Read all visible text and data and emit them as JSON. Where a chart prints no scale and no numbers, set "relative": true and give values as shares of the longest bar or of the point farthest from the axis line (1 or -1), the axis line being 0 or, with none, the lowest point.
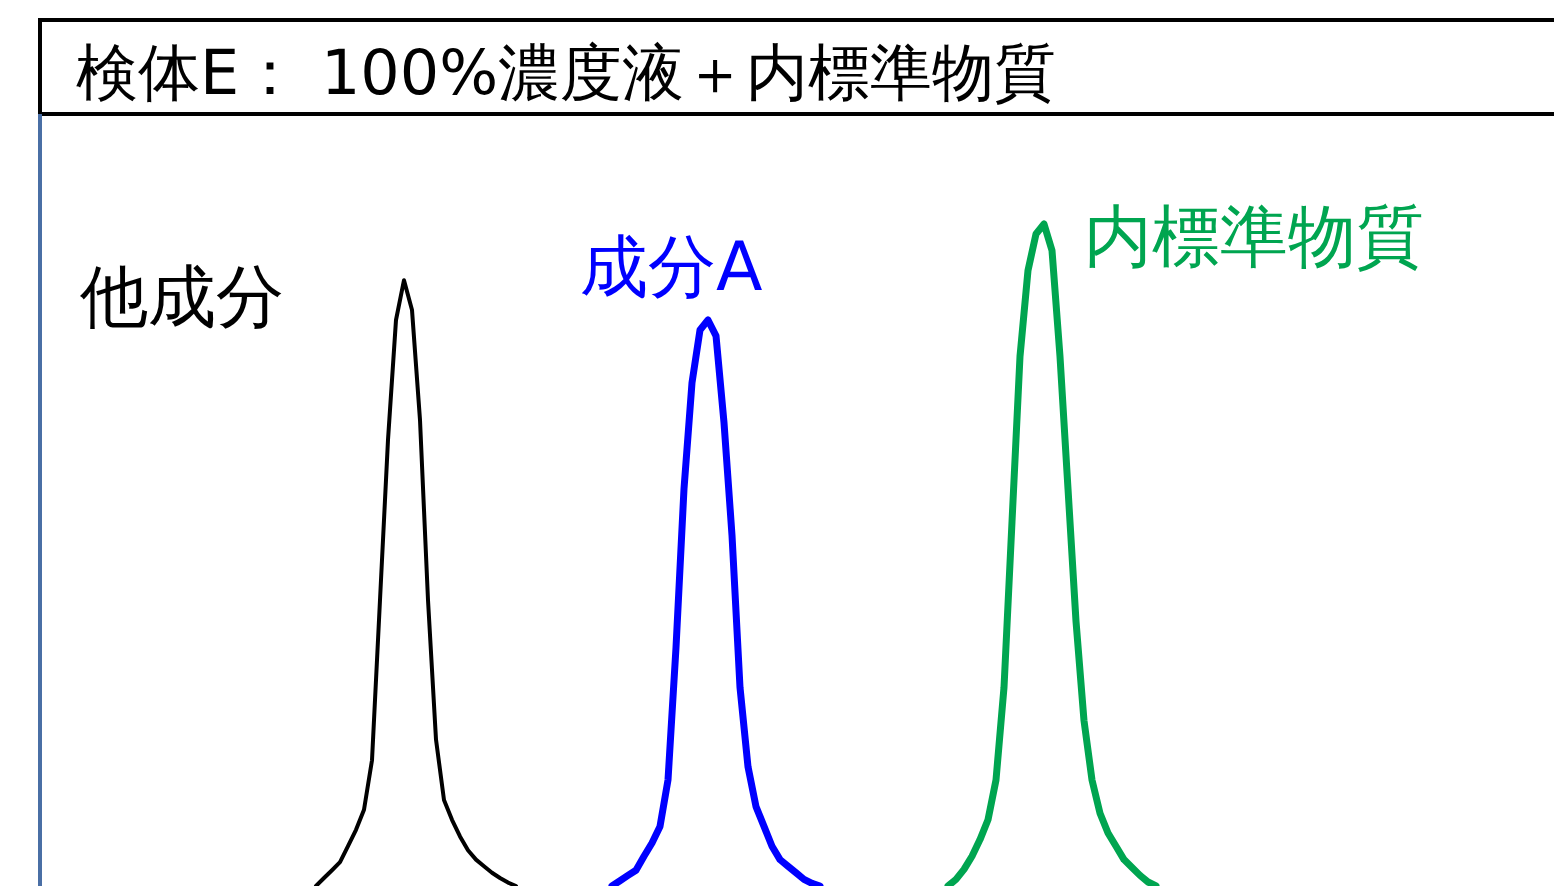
{
  "chart_data": {
    "type": "line",
    "title": "検体E： 100%濃度液＋内標準物質",
    "relative": true,
    "marker": "none",
    "line_style": "solid",
    "categories": [
      null,
      null,
      null,
      null,
      null,
      null,
      null,
      null,
      null,
      null,
      null,
      null,
      null,
      null,
      null,
      null,
      null,
      null,
      null,
      null,
      null,
      null,
      null,
      null,
      null,
      null,
      null,
      null,
      null,
      null,
      null,
      null,
      null,
      null,
      null,
      null,
      null,
      null,
      null,
      null,
      null,
      null,
      null,
      null,
      null,
      null,
      null,
      null,
      null,
      null,
      null,
      null,
      null,
      null,
      null,
      null,
      null,
      null,
      null,
      null,
      null,
      null,
      null,
      null,
      null,
      null,
      null,
      null,
      null,
      null,
      null,
      null,
      null,
      null,
      null,
      null,
      null,
      null,
      null,
      null,
      null,
      null,
      null,
      null,
      null,
      null,
      null,
      null,
      null,
      null,
      null,
      null,
      null,
      null,
      null,
      null,
      null,
      null,
      null,
      null,
      null,
      null,
      null,
      null,
      null,
      null,
      null,
      null,
      null,
      null
    ],
    "series": [
      {
        "name": "他成分",
        "color": "#000000",
        "values": [
          null,
          null,
          null,
          0,
          0.012,
          0.024,
          0.036,
          0.06,
          0.085,
          0.115,
          0.19,
          0.432,
          0.674,
          0.855,
          0.915,
          0.87,
          0.704,
          0.432,
          0.221,
          0.13,
          0.1,
          0.075,
          0.054,
          0.04,
          0.03,
          0.02,
          0.012,
          0.005,
          0,
          null,
          null,
          null,
          null,
          null,
          null,
          null,
          null,
          null,
          null,
          null,
          null,
          null,
          null,
          null,
          null,
          null,
          null,
          null,
          null,
          null,
          null,
          null,
          null,
          null,
          null,
          null,
          null,
          null,
          null,
          null,
          null,
          null,
          null,
          null,
          null,
          null,
          null,
          null,
          null,
          null,
          null,
          null,
          null,
          null,
          null,
          null,
          null,
          null,
          null,
          null,
          null,
          null,
          null,
          null,
          null,
          null,
          null,
          null,
          null,
          null,
          null,
          null,
          null,
          null,
          null,
          null,
          null,
          null,
          null,
          null,
          null,
          null,
          null,
          null,
          null,
          null,
          null,
          null,
          null,
          null
        ]
      },
      {
        "name": "成分A",
        "color": "#0000ff",
        "values": [
          null,
          null,
          null,
          null,
          null,
          null,
          null,
          null,
          null,
          null,
          null,
          null,
          null,
          null,
          null,
          null,
          null,
          null,
          null,
          null,
          null,
          null,
          null,
          null,
          null,
          null,
          null,
          null,
          null,
          null,
          null,
          null,
          null,
          null,
          null,
          null,
          null,
          null,
          null,
          null,
          0,
          0.008,
          0.016,
          0.024,
          0.045,
          0.065,
          0.09,
          0.16,
          0.36,
          0.6,
          0.76,
          0.84,
          0.855,
          0.831,
          0.7,
          0.53,
          0.3,
          0.18,
          0.12,
          0.09,
          0.06,
          0.04,
          0.03,
          0.02,
          0.01,
          0.004,
          0,
          null,
          null,
          null,
          null,
          null,
          null,
          null,
          null,
          null,
          null,
          null,
          null,
          null,
          null,
          null,
          null,
          null,
          null,
          null,
          null,
          null,
          null,
          null,
          null,
          null,
          null,
          null,
          null,
          null,
          null,
          null,
          null,
          null,
          null,
          null,
          null,
          null,
          null,
          null,
          null,
          null,
          null,
          null
        ]
      },
      {
        "name": "内標準物質",
        "color": "#00a550",
        "values": [
          null,
          null,
          null,
          null,
          null,
          null,
          null,
          null,
          null,
          null,
          null,
          null,
          null,
          null,
          null,
          null,
          null,
          null,
          null,
          null,
          null,
          null,
          null,
          null,
          null,
          null,
          null,
          null,
          null,
          null,
          null,
          null,
          null,
          null,
          null,
          null,
          null,
          null,
          null,
          null,
          null,
          null,
          null,
          null,
          null,
          null,
          null,
          null,
          null,
          null,
          null,
          null,
          null,
          null,
          null,
          null,
          null,
          null,
          null,
          null,
          null,
          null,
          null,
          null,
          null,
          null,
          null,
          null,
          null,
          null,
          null,
          null,
          null,
          null,
          null,
          null,
          null,
          null,
          null,
          null,
          null,
          null,
          0,
          0.01,
          0.025,
          0.045,
          0.07,
          0.1,
          0.16,
          0.3,
          0.55,
          0.8,
          0.93,
          0.985,
          1,
          0.96,
          0.8,
          0.6,
          0.4,
          0.25,
          0.16,
          0.11,
          0.08,
          0.06,
          0.04,
          0.028,
          0.016,
          0.006,
          0,
          null
        ]
      }
    ]
  }
}
